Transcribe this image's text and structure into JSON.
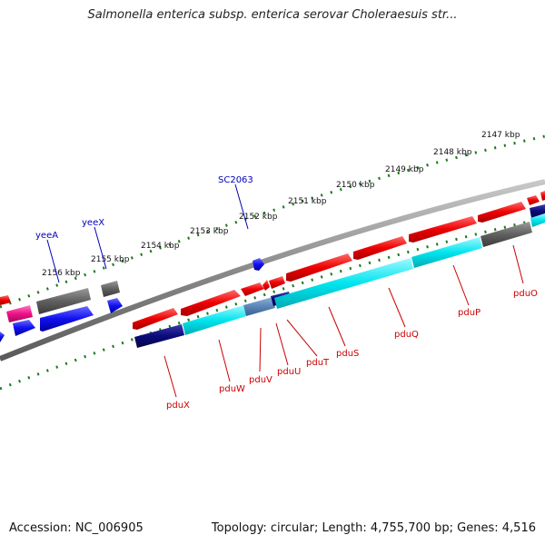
{
  "title": "Salmonella enterica subsp. enterica serovar Choleraesuis str...",
  "footer": {
    "accession": "Accession: NC_006905",
    "info": "Topology: circular; Length: 4,755,700 bp; Genes: 4,516"
  },
  "colors": {
    "forward_gene": "#ee0000",
    "reverse_gene": "#1010ee",
    "cds_cyan": "#00e5ee",
    "navy": "#0a0a7a",
    "grey_gene": "#606060",
    "pink_gene": "#ee1188",
    "gene_label_forward": "#cc0000",
    "gene_label_reverse": "#0000bb",
    "tick_green": "#1a7a1a",
    "backbone": "#909090"
  },
  "scale_labels": [
    "2147 kbp",
    "2148 kbp",
    "2149 kbp",
    "2150 kbp",
    "2151 kbp",
    "2152 kbp",
    "2153 kbp",
    "2154 kbp",
    "2155 kbp",
    "2156 kbp"
  ],
  "gene_labels": {
    "top": [
      "yeeA",
      "yeeX",
      "SC2063"
    ],
    "bottom": [
      "pduX",
      "pduW",
      "pduV",
      "pduU",
      "pduT",
      "pduS",
      "pduQ",
      "pduP",
      "pduO"
    ]
  }
}
